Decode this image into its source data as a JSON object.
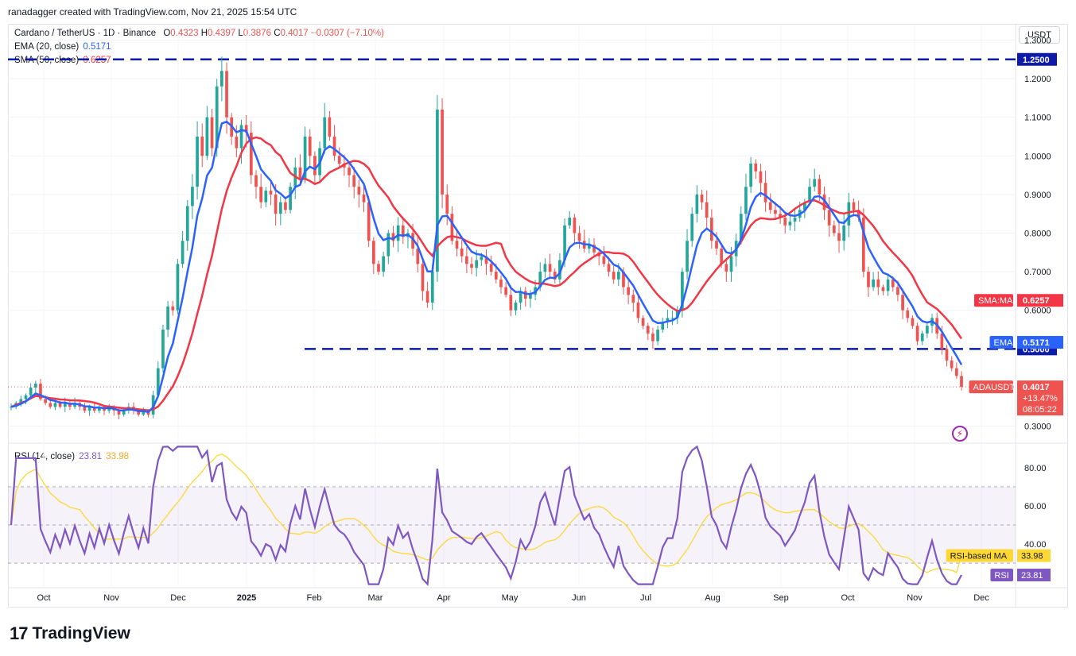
{
  "header": {
    "attribution": "ranadagger created with TradingView.com, Nov 21, 2025 15:54 UTC"
  },
  "legend": {
    "symbol": "Cardano / TetherUS · 1D · Binance",
    "o_label": "O",
    "o": "0.4323",
    "h_label": "H",
    "h": "0.4397",
    "l_label": "L",
    "l": "0.3876",
    "c_label": "C",
    "c": "0.4017",
    "change": "−0.0307 (−7.10%)",
    "ema_label": "EMA (20, close)",
    "ema_value": "0.5171",
    "sma_label": "SMA (50, close)",
    "sma_value": "0.6257",
    "rsi_label": "RSI (14, close)",
    "rsi_value": "23.81",
    "rsi_ma_value": "33.98"
  },
  "currency_button": "USDT",
  "brand": {
    "name": "TradingView",
    "logo_text": "17"
  },
  "colors": {
    "up": "#26a69a",
    "down": "#ef5350",
    "ema": "#2962ff",
    "sma": "#f23645",
    "rsi": "#7e57c2",
    "rsi_ma": "#fdd835",
    "level": "#0d1ba8"
  },
  "chart_data": [
    {
      "type": "candlestick",
      "symbol": "ADAUSDT",
      "ylim": [
        0.26,
        1.34
      ],
      "y_ticks": [
        "1.3000",
        "1.2000",
        "1.1000",
        "1.0000",
        "0.9000",
        "0.8000",
        "0.7000",
        "0.6000",
        "0.3000"
      ],
      "x_ticks": [
        "Oct",
        "Nov",
        "Dec",
        "2025",
        "Feb",
        "Mar",
        "Apr",
        "May",
        "Jun",
        "Jul",
        "Aug",
        "Sep",
        "Oct",
        "Nov",
        "Dec"
      ],
      "horizontal_lines": [
        {
          "value": 1.25,
          "label": "1.2500"
        },
        {
          "value": 0.5,
          "label": "0.5000"
        }
      ],
      "price_tags": [
        {
          "name": "SMA:MA",
          "value": "0.6257"
        },
        {
          "name": "EMA",
          "value": "0.5171"
        },
        {
          "name": "ADAUSDT",
          "value": "0.4017",
          "change": "+13.47%",
          "countdown": "08:05:22"
        }
      ],
      "series_close": [
        0.35,
        0.36,
        0.37,
        0.38,
        0.4,
        0.41,
        0.37,
        0.36,
        0.35,
        0.36,
        0.35,
        0.36,
        0.35,
        0.36,
        0.35,
        0.34,
        0.35,
        0.34,
        0.35,
        0.34,
        0.35,
        0.34,
        0.33,
        0.34,
        0.35,
        0.34,
        0.33,
        0.34,
        0.33,
        0.38,
        0.45,
        0.55,
        0.61,
        0.6,
        0.72,
        0.78,
        0.87,
        0.92,
        1.05,
        1.0,
        1.1,
        1.02,
        1.18,
        1.22,
        1.1,
        1.05,
        1.02,
        1.08,
        1.06,
        0.95,
        0.92,
        0.88,
        0.91,
        0.9,
        0.85,
        0.88,
        0.86,
        0.92,
        0.97,
        0.94,
        1.05,
        1.0,
        0.95,
        1.02,
        1.1,
        1.05,
        1.0,
        0.98,
        0.97,
        0.95,
        0.92,
        0.9,
        0.88,
        0.78,
        0.72,
        0.7,
        0.74,
        0.8,
        0.78,
        0.82,
        0.79,
        0.8,
        0.76,
        0.72,
        0.65,
        0.62,
        0.7,
        1.12,
        0.9,
        0.85,
        0.78,
        0.76,
        0.74,
        0.72,
        0.71,
        0.73,
        0.74,
        0.72,
        0.7,
        0.68,
        0.66,
        0.64,
        0.6,
        0.62,
        0.65,
        0.63,
        0.64,
        0.66,
        0.7,
        0.72,
        0.7,
        0.68,
        0.73,
        0.82,
        0.84,
        0.8,
        0.78,
        0.76,
        0.77,
        0.75,
        0.74,
        0.72,
        0.7,
        0.68,
        0.7,
        0.66,
        0.64,
        0.62,
        0.58,
        0.56,
        0.54,
        0.52,
        0.55,
        0.57,
        0.58,
        0.58,
        0.6,
        0.7,
        0.78,
        0.85,
        0.9,
        0.88,
        0.84,
        0.78,
        0.76,
        0.72,
        0.7,
        0.74,
        0.78,
        0.85,
        0.92,
        0.98,
        0.96,
        0.93,
        0.88,
        0.86,
        0.85,
        0.84,
        0.82,
        0.83,
        0.84,
        0.86,
        0.88,
        0.92,
        0.94,
        0.9,
        0.86,
        0.82,
        0.8,
        0.78,
        0.82,
        0.88,
        0.86,
        0.84,
        0.7,
        0.66,
        0.68,
        0.66,
        0.65,
        0.68,
        0.66,
        0.64,
        0.6,
        0.58,
        0.56,
        0.52,
        0.54,
        0.56,
        0.58,
        0.54,
        0.5,
        0.47,
        0.45,
        0.43,
        0.4017
      ],
      "series_names": [
        "EMA (20, close)",
        "SMA (50, close)"
      ]
    },
    {
      "type": "line",
      "title": "RSI (14, close)",
      "ylim": [
        18,
        92
      ],
      "y_ticks": [
        "80.00",
        "60.00",
        "40.00"
      ],
      "bands": [
        30,
        50,
        70
      ],
      "price_tags": [
        {
          "name": "RSI-based MA",
          "value": "33.98"
        },
        {
          "name": "RSI",
          "value": "23.81"
        }
      ]
    }
  ]
}
